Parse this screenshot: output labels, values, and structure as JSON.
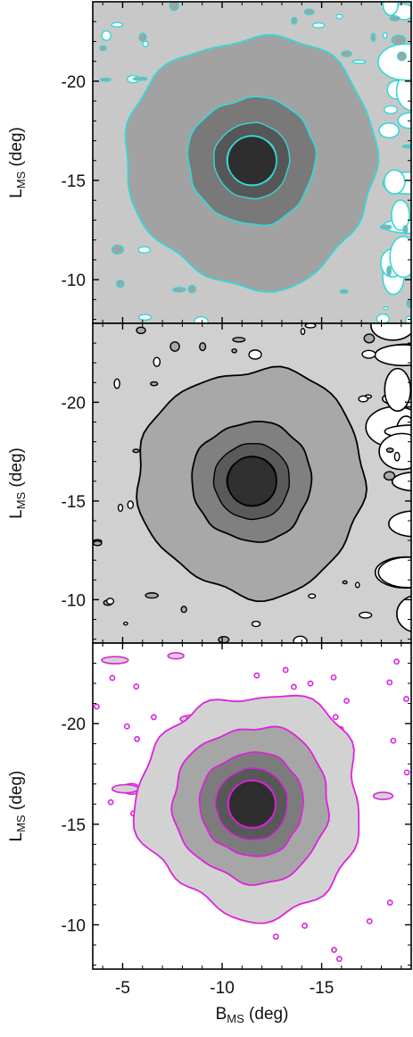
{
  "chart_data": [
    {
      "type": "heatmap",
      "panel": "top",
      "style": "filled density contours",
      "ylabel": "L",
      "ylabel_sub": "MS",
      "ylabel_unit": " (deg)",
      "xlim": [
        -3.5,
        -19.5
      ],
      "ylim": [
        -7.8,
        -24.0
      ],
      "yticks": [
        -20,
        -15,
        -10
      ],
      "ytick_labels": [
        "-20",
        "-15",
        "-10"
      ],
      "peak": {
        "b": -11.5,
        "l": -16.0
      },
      "contour_color": "#38d6d6",
      "fill_levels": [
        "#c8c8c8",
        "#a2a2a2",
        "#797979",
        "#565656",
        "#2e2e2e"
      ],
      "contour_radii_deg": [
        9.5,
        6.3,
        3.2,
        1.9,
        1.25
      ],
      "edge": {
        "side": "right",
        "b": -18.0
      }
    },
    {
      "type": "heatmap",
      "panel": "middle",
      "style": "filled density contours",
      "ylabel": "L",
      "ylabel_sub": "MS",
      "ylabel_unit": " (deg)",
      "xlim": [
        -3.5,
        -19.5
      ],
      "ylim": [
        -7.8,
        -24.0
      ],
      "yticks": [
        -20,
        -15,
        -10
      ],
      "ytick_labels": [
        "-20",
        "-15",
        "-10"
      ],
      "peak": {
        "b": -11.5,
        "l": -16.0
      },
      "contour_color": "#000000",
      "fill_levels": [
        "#d0d0d0",
        "#a8a8a8",
        "#808080",
        "#5a5a5a",
        "#303030"
      ],
      "contour_radii_deg": [
        8.4,
        5.7,
        3.0,
        1.9,
        1.25
      ],
      "edge": {
        "side": "right",
        "b": -18.2
      }
    },
    {
      "type": "heatmap",
      "panel": "bottom",
      "style": "filled density contours",
      "ylabel": "L",
      "ylabel_sub": "MS",
      "ylabel_unit": " (deg)",
      "xlabel": "B",
      "xlabel_sub": "MS",
      "xlabel_unit": " (deg)",
      "xlim": [
        -3.5,
        -19.5
      ],
      "ylim": [
        -7.8,
        -24.0
      ],
      "xticks": [
        -5,
        -10,
        -15
      ],
      "xtick_labels": [
        "-5",
        "-10",
        "-15"
      ],
      "yticks": [
        -20,
        -15,
        -10
      ],
      "ytick_labels": [
        "-20",
        "-15",
        "-10"
      ],
      "peak": {
        "b": -11.5,
        "l": -16.0
      },
      "contour_color": "#dd22dd",
      "fill_levels": [
        "#d2d2d2",
        "#a6a6a6",
        "#7c7c7c",
        "#585858",
        "#2e2e2e"
      ],
      "contour_radii_deg": [
        5.6,
        3.9,
        2.6,
        1.8,
        1.2
      ],
      "edge": {
        "side": "none",
        "b": 0
      }
    }
  ]
}
